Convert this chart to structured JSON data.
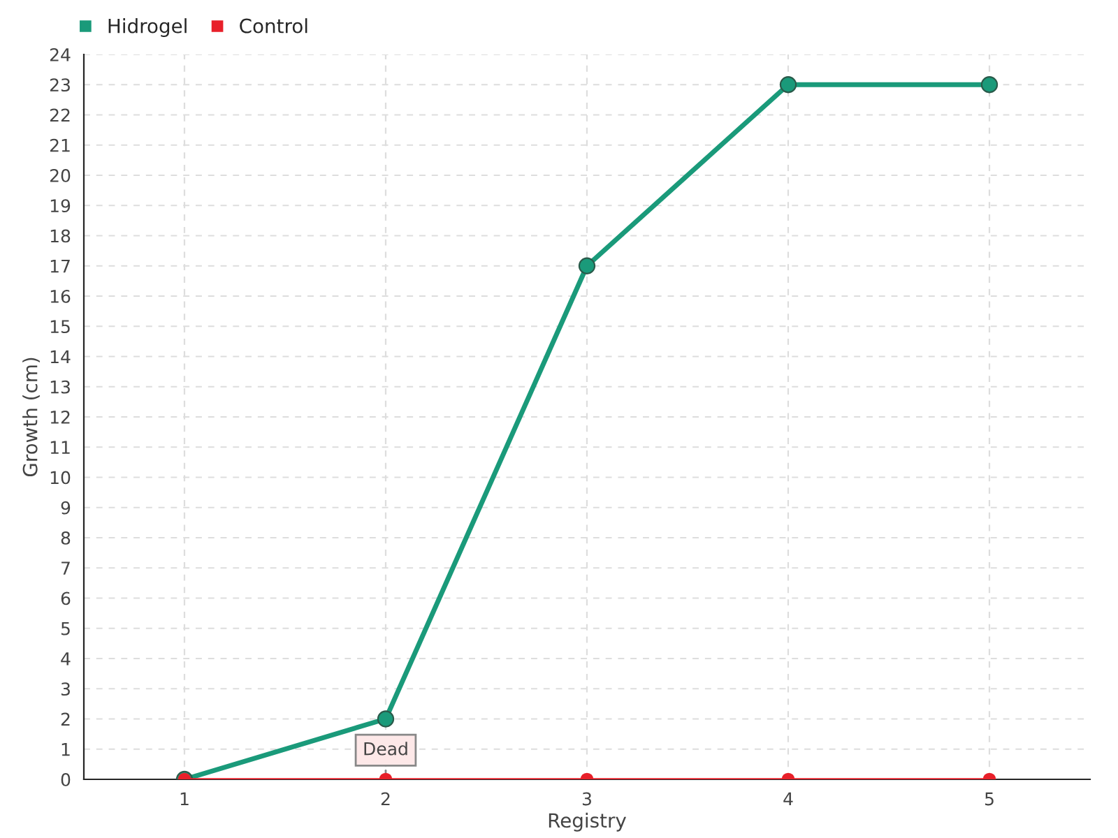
{
  "chart_data": {
    "type": "line",
    "xlabel": "Registry",
    "ylabel": "Growth (cm)",
    "categories": [
      "1",
      "2",
      "3",
      "4",
      "5"
    ],
    "series": [
      {
        "name": "Hidrogel",
        "color": "#1a9a7a",
        "values": [
          0,
          2,
          17,
          23,
          23
        ]
      },
      {
        "name": "Control",
        "color": "#e8202a",
        "values": [
          0,
          0,
          0,
          0,
          0
        ]
      }
    ],
    "ylim": [
      0,
      24
    ],
    "yticks": [
      0,
      1,
      2,
      3,
      4,
      5,
      6,
      7,
      8,
      9,
      10,
      11,
      12,
      13,
      14,
      15,
      16,
      17,
      18,
      19,
      20,
      21,
      22,
      23,
      24
    ],
    "grid": true,
    "legend": "top left",
    "marker": "circle",
    "line_style": "solid",
    "annotations": [
      {
        "text": "Dead",
        "x": "2",
        "y": 0
      }
    ]
  }
}
